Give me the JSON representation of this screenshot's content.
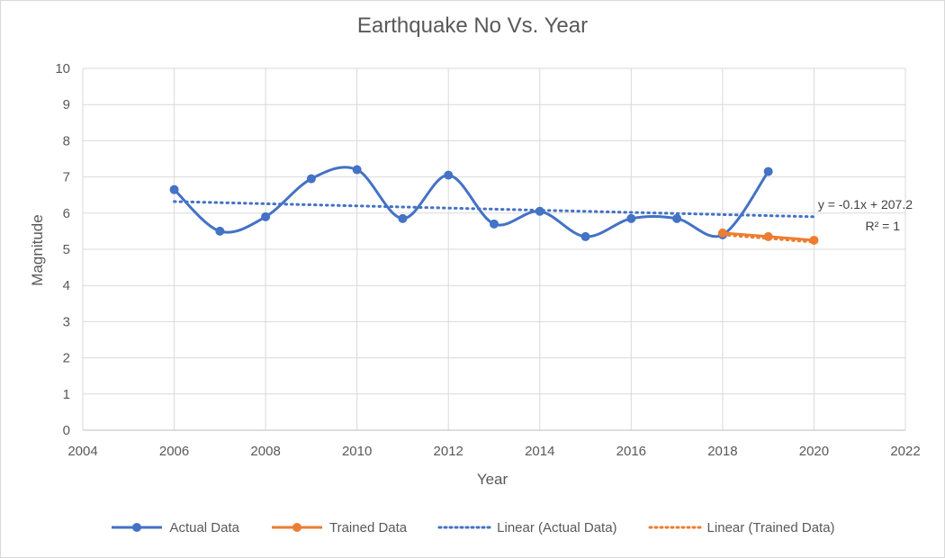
{
  "chart_data": {
    "type": "line",
    "title": "Earthquake No Vs. Year",
    "xlabel": "Year",
    "ylabel": "Magnitude",
    "xlim": [
      2004,
      2022
    ],
    "ylim": [
      0,
      10
    ],
    "x_ticks": [
      "2004",
      "2006",
      "2008",
      "2010",
      "2012",
      "2014",
      "2016",
      "2018",
      "2020",
      "2022"
    ],
    "y_ticks": [
      "0",
      "1",
      "2",
      "3",
      "4",
      "5",
      "6",
      "7",
      "8",
      "9",
      "10"
    ],
    "grid": true,
    "legend_position": "bottom",
    "series": [
      {
        "name": "Actual Data",
        "style": "smooth-line-markers",
        "color": "#4472c4",
        "x": [
          2006,
          2007,
          2008,
          2009,
          2010,
          2011,
          2012,
          2013,
          2014,
          2015,
          2016,
          2017,
          2018,
          2019
        ],
        "y": [
          6.65,
          5.5,
          5.9,
          6.95,
          7.2,
          5.85,
          7.05,
          5.7,
          6.05,
          5.35,
          5.85,
          5.85,
          5.4,
          7.15
        ]
      },
      {
        "name": "Trained Data",
        "style": "line-markers",
        "color": "#ed7d31",
        "x": [
          2018,
          2019,
          2020
        ],
        "y": [
          5.45,
          5.35,
          5.25
        ]
      },
      {
        "name": "Linear (Actual Data)",
        "style": "dotted-trendline",
        "color": "#4472c4",
        "x": [
          2006,
          2020
        ],
        "y": [
          6.32,
          5.9
        ]
      },
      {
        "name": "Linear (Trained Data)",
        "style": "dotted-trendline",
        "color": "#ed7d31",
        "x": [
          2018,
          2020
        ],
        "y": [
          5.4,
          5.2
        ]
      }
    ],
    "annotations": {
      "equation": "y = -0.1x + 207.2",
      "r_squared": "R² = 1"
    }
  }
}
